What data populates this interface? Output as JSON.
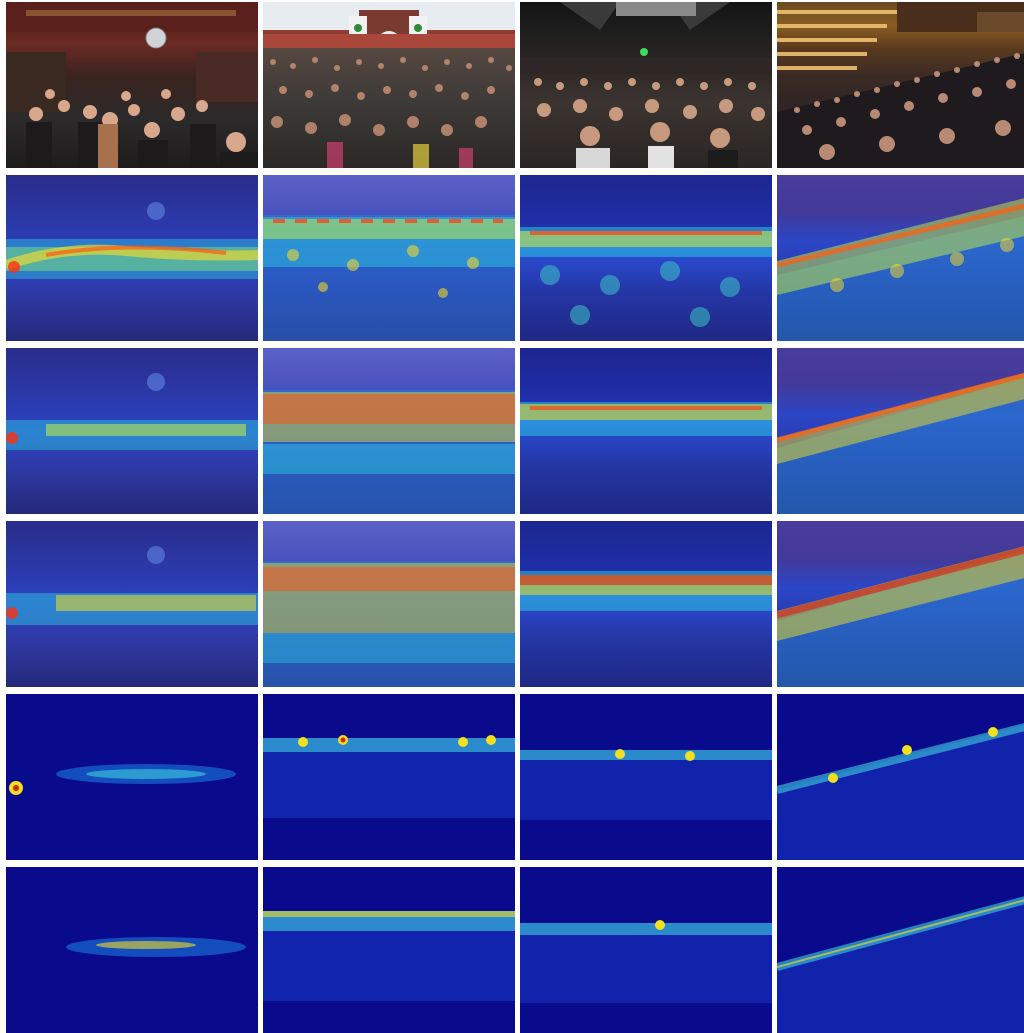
{
  "figure": {
    "rows": [
      {
        "row": 0,
        "kind": "input-photo",
        "cells": [
          "club-crowd-photo",
          "outdoor-festival-crowd-photo",
          "concert-crowd-photo",
          "auditorium-crowd-photo"
        ]
      },
      {
        "row": 1,
        "kind": "attention-overlay",
        "cells": [
          "club-overlay-a",
          "outdoor-overlay-a",
          "concert-overlay-a",
          "auditorium-overlay-a"
        ]
      },
      {
        "row": 2,
        "kind": "attention-overlay",
        "cells": [
          "club-overlay-b",
          "outdoor-overlay-b",
          "concert-overlay-b",
          "auditorium-overlay-b"
        ]
      },
      {
        "row": 3,
        "kind": "attention-overlay",
        "cells": [
          "club-overlay-c",
          "outdoor-overlay-c",
          "concert-overlay-c",
          "auditorium-overlay-c"
        ]
      },
      {
        "row": 4,
        "kind": "density-map",
        "cells": [
          "club-density-a",
          "outdoor-density-a",
          "concert-density-a",
          "auditorium-density-a"
        ]
      },
      {
        "row": 5,
        "kind": "density-map",
        "cells": [
          "club-density-b",
          "outdoor-density-b",
          "concert-density-b",
          "auditorium-density-b"
        ]
      }
    ],
    "colormap": [
      "#00008c",
      "#0033ff",
      "#00ccff",
      "#33ff99",
      "#ffff00",
      "#ff8800",
      "#cc0000"
    ],
    "photo_signs": {
      "left": "!",
      "right": "!"
    }
  }
}
